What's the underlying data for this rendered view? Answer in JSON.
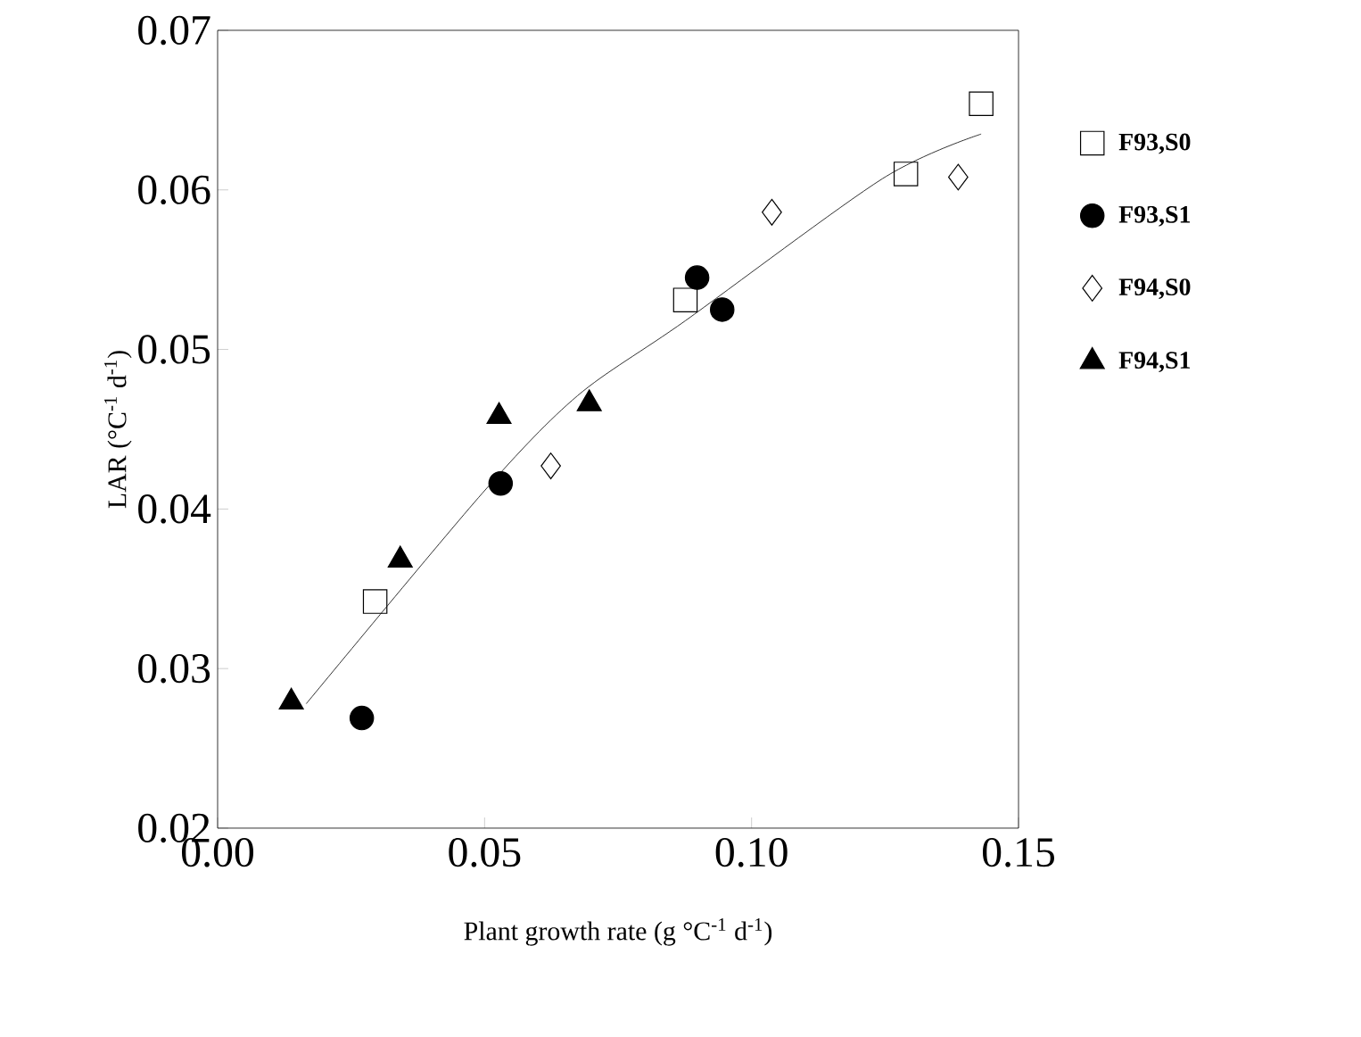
{
  "chart_data": {
    "type": "scatter",
    "xlabel": "Plant growth rate (g °C$^{-1}$ d$^{-1}$)",
    "ylabel": "LAR (°C$^{-1}$ d$^{-1}$)",
    "xlim": [
      0,
      0.15
    ],
    "ylim": [
      0.02,
      0.07
    ],
    "xticks": [
      {
        "value": 0,
        "label": "0.00"
      },
      {
        "value": 0.05,
        "label": "0.05"
      },
      {
        "value": 0.1,
        "label": "0.10"
      },
      {
        "value": 0.15,
        "label": "0.15"
      }
    ],
    "yticks": [
      {
        "value": 0.02,
        "label": "0.02"
      },
      {
        "value": 0.03,
        "label": "0.03"
      },
      {
        "value": 0.04,
        "label": "0.04"
      },
      {
        "value": 0.05,
        "label": "0.05"
      },
      {
        "value": 0.06,
        "label": "0.06"
      },
      {
        "value": 0.07,
        "label": "0.07"
      }
    ],
    "legend": "right",
    "grid": false,
    "series": [
      {
        "type": "line",
        "color": "#000000",
        "marker": "none",
        "x": [
          0.0166,
          0.0496,
          0.0674,
          0.0876,
          0.1245,
          0.143
        ],
        "values": [
          0.0278,
          0.041,
          0.0471,
          0.0518,
          0.0607,
          0.0635
        ]
      },
      {
        "name": "F93,S0",
        "color": "#000000",
        "marker": "square",
        "x": [
          0.0295,
          0.0876,
          0.1289,
          0.143
        ],
        "values": [
          0.0342,
          0.0531,
          0.061,
          0.0654
        ]
      },
      {
        "name": "F93,S1",
        "color": "#000000",
        "marker": "circle",
        "x": [
          0.027,
          0.053,
          0.0898,
          0.0945
        ],
        "values": [
          0.0269,
          0.0416,
          0.0545,
          0.0525
        ]
      },
      {
        "name": "F94,S0",
        "color": "#000000",
        "marker": "diamond",
        "x": [
          0.0624,
          0.1038,
          0.1387
        ],
        "values": [
          0.0427,
          0.0586,
          0.0608
        ]
      },
      {
        "name": "F94,S1",
        "color": "#000000",
        "marker": "triangle",
        "x": [
          0.0138,
          0.0342,
          0.0527,
          0.0696
        ],
        "values": [
          0.0279,
          0.0368,
          0.0458,
          0.0466
        ]
      }
    ]
  }
}
